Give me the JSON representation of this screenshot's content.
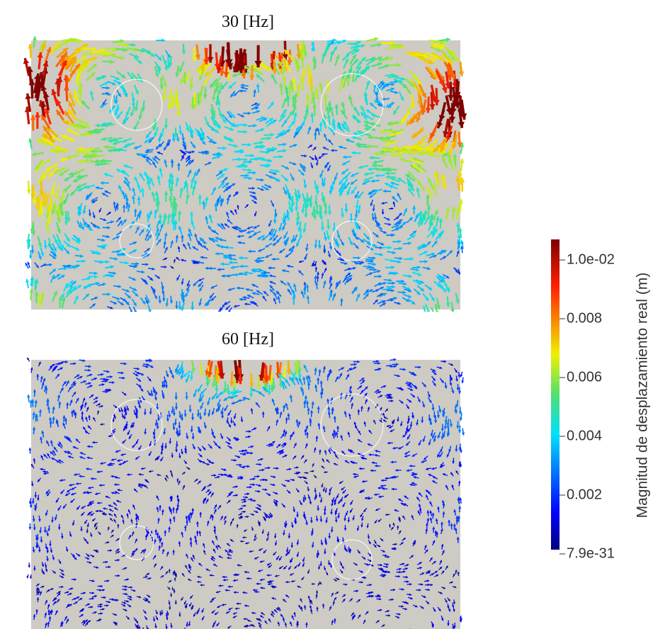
{
  "panels": [
    {
      "title": "30 [Hz]"
    },
    {
      "title": "60 [Hz]"
    }
  ],
  "colorbar": {
    "title": "Magnitud de  desplazamiento real (m)",
    "ticks": [
      "1.0e-02",
      "0.008",
      "0.006",
      "0.004",
      "0.002",
      "7.9e-31"
    ]
  }
}
